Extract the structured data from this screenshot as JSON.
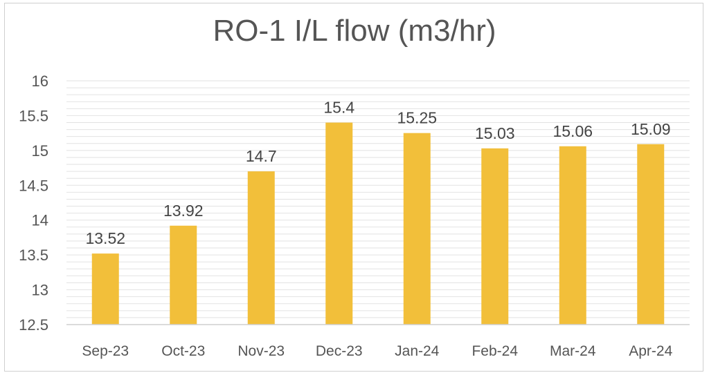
{
  "chart_data": {
    "type": "bar",
    "title": "RO-1 I/L flow (m3/hr)",
    "xlabel": "",
    "ylabel": "",
    "categories": [
      "Sep-23",
      "Oct-23",
      "Nov-23",
      "Dec-23",
      "Jan-24",
      "Feb-24",
      "Mar-24",
      "Apr-24"
    ],
    "values": [
      13.52,
      13.92,
      14.7,
      15.4,
      15.25,
      15.03,
      15.06,
      15.09
    ],
    "data_labels": [
      "13.52",
      "13.92",
      "14.7",
      "15.4",
      "15.25",
      "15.03",
      "15.06",
      "15.09"
    ],
    "ylim": [
      12.5,
      16
    ],
    "yticks": [
      "12.5",
      "13",
      "13.5",
      "14",
      "14.5",
      "15",
      "15.5",
      "16"
    ],
    "grid": true,
    "legend": "none",
    "bar_color": "#f2bf3a",
    "grid_color": "#e2e2e2"
  }
}
